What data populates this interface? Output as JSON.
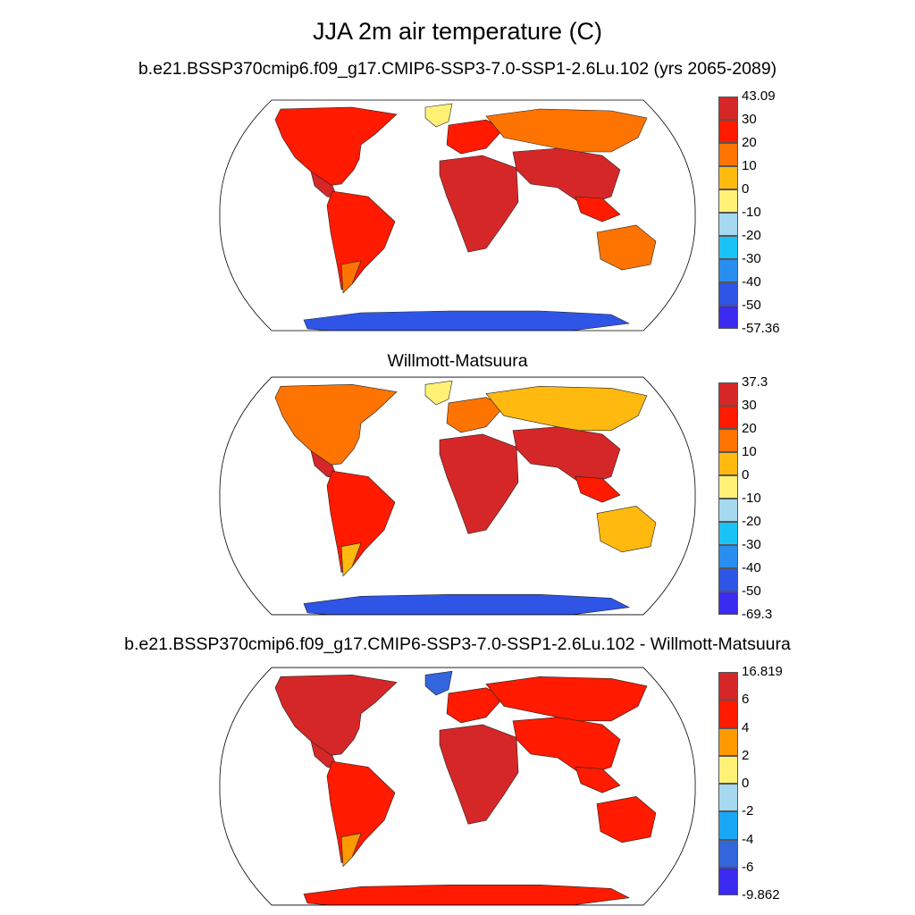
{
  "figure_title": "JJA 2m air temperature (C)",
  "panels": [
    {
      "title": "b.e21.BSSP370cmip6.f09_g17.CMIP6-SSP3-7.0-SSP1-2.6Lu.102 (yrs 2065-2089)",
      "colorbar_labels": [
        "43.09",
        "30",
        "20",
        "10",
        "0",
        "-10",
        "-20",
        "-30",
        "-40",
        "-50",
        "-57.36"
      ],
      "colors": [
        "#d62728",
        "#ff1a00",
        "#ff7400",
        "#ffb90f",
        "#fff176",
        "#a6d8f0",
        "#19c3f5",
        "#2a8ef0",
        "#2f55e6",
        "#3b2af0"
      ]
    },
    {
      "title": "Willmott-Matsuura",
      "colorbar_labels": [
        "37.3",
        "30",
        "20",
        "10",
        "0",
        "-10",
        "-20",
        "-30",
        "-40",
        "-50",
        "-69.3"
      ],
      "colors": [
        "#d62728",
        "#ff1a00",
        "#ff7400",
        "#ffb90f",
        "#fff176",
        "#a6d8f0",
        "#19c3f5",
        "#2a8ef0",
        "#2f55e6",
        "#3b2af0"
      ]
    },
    {
      "title": "b.e21.BSSP370cmip6.f09_g17.CMIP6-SSP3-7.0-SSP1-2.6Lu.102 - Willmott-Matsuura",
      "colorbar_labels": [
        "16.819",
        "6",
        "4",
        "2",
        "0",
        "-2",
        "-4",
        "-6",
        "-9.862"
      ],
      "colors": [
        "#d62728",
        "#ff1a00",
        "#ff9900",
        "#fff176",
        "#a6d8f0",
        "#19a8f5",
        "#3366dd",
        "#3b2af0"
      ]
    }
  ]
}
